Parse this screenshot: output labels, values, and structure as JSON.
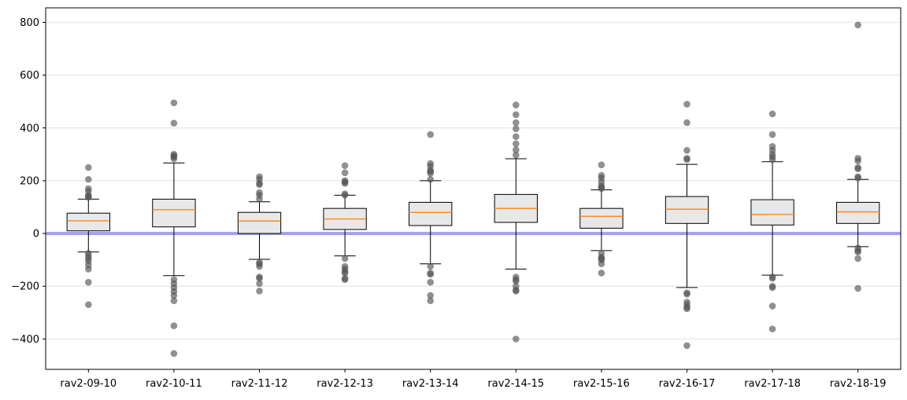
{
  "chart_data": {
    "type": "boxplot",
    "title": "",
    "xlabel": "",
    "ylabel": "",
    "ylim": [
      -515,
      855
    ],
    "yticks": [
      -400,
      -200,
      0,
      200,
      400,
      600,
      800
    ],
    "grid": "horizontal",
    "reference_line": {
      "y": 0,
      "color": "#a0a0f0"
    },
    "colors": {
      "box_fill": "#e8e8e8",
      "box_edge": "#000000",
      "median": "#ff7f0e",
      "outlier": "#555555",
      "grid": "#ebebeb"
    },
    "categories": [
      "rav2-09-10",
      "rav2-10-11",
      "rav2-11-12",
      "rav2-12-13",
      "rav2-13-14",
      "rav2-14-15",
      "rav2-15-16",
      "rav2-16-17",
      "rav2-17-18",
      "rav2-18-19"
    ],
    "boxes": [
      {
        "whisker_low": -70,
        "q1": 10,
        "median": 48,
        "q3": 77,
        "whisker_high": 130,
        "outliers": [
          250,
          205,
          170,
          160,
          145,
          140,
          137,
          -75,
          -85,
          -95,
          -105,
          -120,
          -135,
          -185,
          -270
        ]
      },
      {
        "whisker_low": -160,
        "q1": 25,
        "median": 90,
        "q3": 130,
        "whisker_high": 267,
        "outliers": [
          495,
          418,
          300,
          295,
          290,
          283,
          -175,
          -190,
          -205,
          -220,
          -235,
          -255,
          -350,
          -455
        ]
      },
      {
        "whisker_low": -98,
        "q1": 0,
        "median": 47,
        "q3": 80,
        "whisker_high": 120,
        "outliers": [
          215,
          205,
          190,
          185,
          155,
          145,
          130,
          -110,
          -115,
          -125,
          -165,
          -170,
          -190,
          -218
        ]
      },
      {
        "whisker_low": -85,
        "q1": 15,
        "median": 55,
        "q3": 95,
        "whisker_high": 145,
        "outliers": [
          257,
          230,
          200,
          195,
          190,
          150,
          145,
          -95,
          -125,
          -135,
          -145,
          -150,
          -170,
          -175
        ]
      },
      {
        "whisker_low": -115,
        "q1": 30,
        "median": 80,
        "q3": 118,
        "whisker_high": 200,
        "outliers": [
          375,
          265,
          255,
          240,
          235,
          228,
          205,
          -125,
          -150,
          -155,
          -185,
          -235,
          -255
        ]
      },
      {
        "whisker_low": -135,
        "q1": 42,
        "median": 95,
        "q3": 148,
        "whisker_high": 283,
        "outliers": [
          487,
          450,
          420,
          397,
          367,
          340,
          317,
          297,
          -165,
          -175,
          -180,
          -200,
          -215,
          -218,
          -400
        ]
      },
      {
        "whisker_low": -65,
        "q1": 20,
        "median": 65,
        "q3": 95,
        "whisker_high": 165,
        "outliers": [
          260,
          220,
          210,
          195,
          180,
          175,
          170,
          -75,
          -90,
          -95,
          -100,
          -115,
          -150
        ]
      },
      {
        "whisker_low": -205,
        "q1": 38,
        "median": 92,
        "q3": 140,
        "whisker_high": 262,
        "outliers": [
          490,
          420,
          315,
          285,
          280,
          -225,
          -230,
          -260,
          -270,
          -280,
          -285,
          -425
        ]
      },
      {
        "whisker_low": -158,
        "q1": 32,
        "median": 72,
        "q3": 128,
        "whisker_high": 272,
        "outliers": [
          453,
          375,
          330,
          315,
          300,
          290,
          280,
          -165,
          -170,
          -200,
          -205,
          -275,
          -362
        ]
      },
      {
        "whisker_low": -50,
        "q1": 38,
        "median": 82,
        "q3": 118,
        "whisker_high": 205,
        "outliers": [
          790,
          285,
          275,
          250,
          245,
          215,
          210,
          -55,
          -65,
          -70,
          -95,
          -208
        ]
      }
    ]
  }
}
